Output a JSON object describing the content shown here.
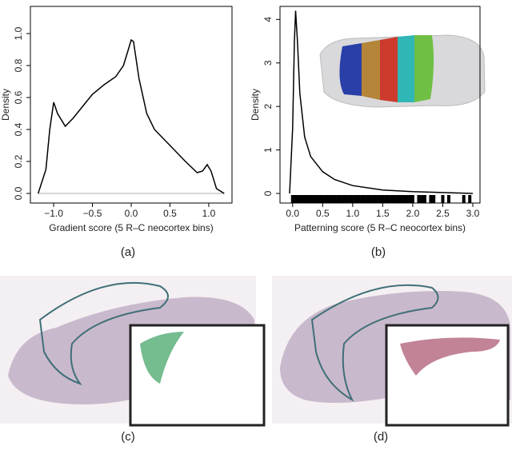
{
  "chart_data": [
    {
      "type": "line",
      "xlabel": "Gradient score (5 R–C neocortex bins)",
      "ylabel": "Density",
      "color": "#000000",
      "x": [
        -1.2,
        -1.1,
        -1.05,
        -1.0,
        -0.95,
        -0.85,
        -0.75,
        -0.6,
        -0.5,
        -0.35,
        -0.2,
        -0.1,
        -0.05,
        0.0,
        0.03,
        0.1,
        0.2,
        0.3,
        0.5,
        0.7,
        0.85,
        0.92,
        0.98,
        1.03,
        1.1,
        1.2
      ],
      "values": [
        0.0,
        0.15,
        0.4,
        0.57,
        0.5,
        0.42,
        0.47,
        0.56,
        0.62,
        0.68,
        0.73,
        0.8,
        0.88,
        0.96,
        0.95,
        0.72,
        0.5,
        0.4,
        0.3,
        0.2,
        0.13,
        0.14,
        0.18,
        0.14,
        0.03,
        0.0
      ],
      "xlim": [
        -1.3,
        1.3
      ],
      "ylim": [
        -0.06,
        1.17
      ],
      "xticks": [
        {
          "value": -1,
          "label": "−1.0"
        },
        {
          "value": -0.5,
          "label": "−0.5"
        },
        {
          "value": 0,
          "label": "0.0"
        },
        0.5,
        {
          "value": 1,
          "label": "1.0"
        }
      ],
      "yticks": [
        {
          "value": 0,
          "label": "0.0"
        },
        0.2,
        0.4,
        0.6,
        0.8,
        {
          "value": 1,
          "label": "1.0"
        }
      ]
    },
    {
      "type": "line",
      "xlabel": "Patterning score (5 R–C neocortex bins)",
      "ylabel": "Density",
      "color": "#000000",
      "x": [
        -0.05,
        0.0,
        0.03,
        0.05,
        0.08,
        0.12,
        0.2,
        0.3,
        0.5,
        0.7,
        1.0,
        1.5,
        2.0,
        2.5,
        3.0
      ],
      "values": [
        0.0,
        1.5,
        3.5,
        4.2,
        3.5,
        2.3,
        1.3,
        0.85,
        0.5,
        0.32,
        0.18,
        0.08,
        0.04,
        0.02,
        0.0
      ],
      "rug": [
        0.0,
        0.05,
        0.1,
        0.15,
        0.2,
        0.25,
        0.3,
        0.35,
        0.4,
        0.45,
        0.5,
        0.55,
        0.6,
        0.65,
        0.7,
        0.75,
        0.8,
        0.85,
        0.9,
        0.95,
        1.0,
        1.05,
        1.1,
        1.15,
        1.2,
        1.25,
        1.3,
        1.35,
        1.4,
        1.45,
        1.5,
        1.55,
        1.6,
        1.65,
        1.7,
        1.75,
        1.8,
        1.85,
        1.9,
        1.95,
        2.0,
        2.1,
        2.15,
        2.2,
        2.3,
        2.35,
        2.5,
        2.6,
        2.85,
        2.95
      ],
      "xlim": [
        -0.21,
        3.12
      ],
      "ylim": [
        -0.22,
        4.3
      ],
      "xticks": [
        {
          "value": 0,
          "label": "0.0"
        },
        0.5,
        {
          "value": 1,
          "label": "1.0"
        },
        1.5,
        {
          "value": 2,
          "label": "2.0"
        },
        2.5,
        {
          "value": 3,
          "label": "3.0"
        }
      ],
      "yticks": [
        0,
        1,
        2,
        3,
        4
      ]
    }
  ],
  "panels": [
    "(a)",
    "(b)",
    "(c)",
    "(d)"
  ]
}
